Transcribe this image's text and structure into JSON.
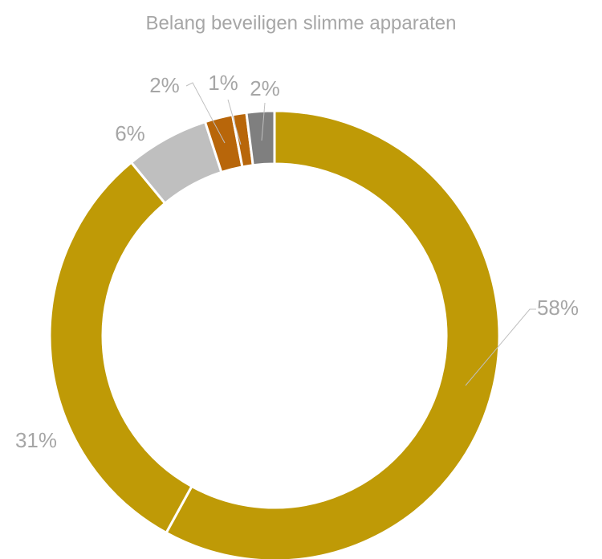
{
  "chart_data": {
    "type": "donut",
    "title": "Belang beveiligen slimme apparaten",
    "values": [
      58,
      31,
      6,
      2,
      1,
      2
    ],
    "value_labels": [
      "58%",
      "31%",
      "6%",
      "2%",
      "1%",
      "2%"
    ],
    "colors": [
      "#bf9a06",
      "#bf9a06",
      "#bfbfbf",
      "#b8660a",
      "#b8660a",
      "#7f7f7f"
    ]
  }
}
